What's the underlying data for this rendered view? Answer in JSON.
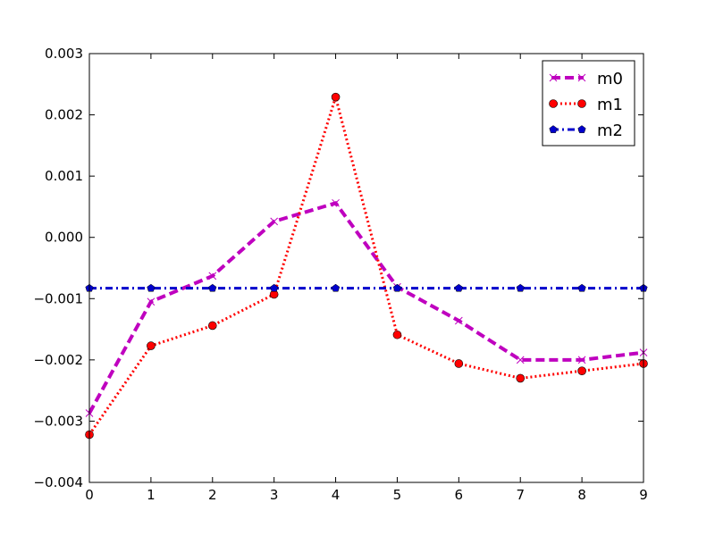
{
  "chart_data": {
    "type": "line",
    "title": "",
    "xlabel": "",
    "ylabel": "",
    "x": [
      0,
      1,
      2,
      3,
      4,
      5,
      6,
      7,
      8,
      9
    ],
    "xlim": [
      0,
      9
    ],
    "ylim": [
      -0.004,
      0.003
    ],
    "xticks": [
      "0",
      "1",
      "2",
      "3",
      "4",
      "5",
      "6",
      "7",
      "8",
      "9"
    ],
    "yticks": [
      "0.003",
      "0.002",
      "0.001",
      "0.000",
      "−0.001",
      "−0.002",
      "−0.003",
      "−0.004"
    ],
    "ytick_values": [
      0.003,
      0.002,
      0.001,
      0.0,
      -0.001,
      -0.002,
      -0.003,
      -0.004
    ],
    "grid": false,
    "legend_position": "top-right",
    "series": [
      {
        "name": "m0",
        "color": "#bf00bf",
        "line_style": "dashed",
        "marker": "x",
        "values": [
          -0.00287,
          -0.00105,
          -0.00063,
          0.00026,
          0.00056,
          -0.00081,
          -0.00136,
          -0.002,
          -0.002,
          -0.00188
        ]
      },
      {
        "name": "m1",
        "color": "#ff0000",
        "line_style": "dotted",
        "marker": "circle",
        "values": [
          -0.00322,
          -0.00177,
          -0.00144,
          -0.00093,
          0.00229,
          -0.00159,
          -0.00206,
          -0.0023,
          -0.00218,
          -0.00206
        ]
      },
      {
        "name": "m2",
        "color": "#0000cc",
        "line_style": "dashdot",
        "marker": "pentagon",
        "values": [
          -0.00083,
          -0.00083,
          -0.00083,
          -0.00083,
          -0.00083,
          -0.00083,
          -0.00083,
          -0.00083,
          -0.00083,
          -0.00083
        ]
      }
    ]
  }
}
